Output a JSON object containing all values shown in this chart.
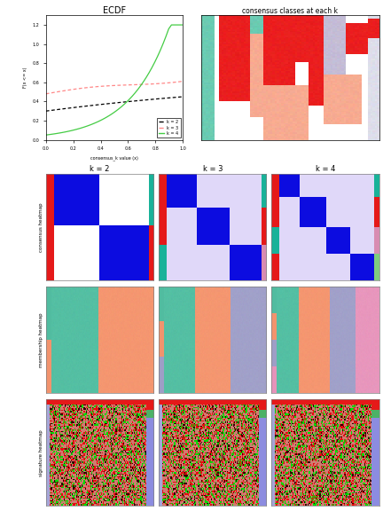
{
  "title_ecdf": "ECDF",
  "title_consensus": "consensus classes at each k",
  "k_labels": [
    "k = 2",
    "k = 3",
    "k = 4"
  ],
  "row_labels": [
    "consensus heatmap",
    "membership heatmap",
    "signature heatmap"
  ],
  "ecdf_k2_color": "#000000",
  "ecdf_k3_color": "#FF8888",
  "ecdf_k4_color": "#44CC44",
  "bg_color": "#ffffff"
}
